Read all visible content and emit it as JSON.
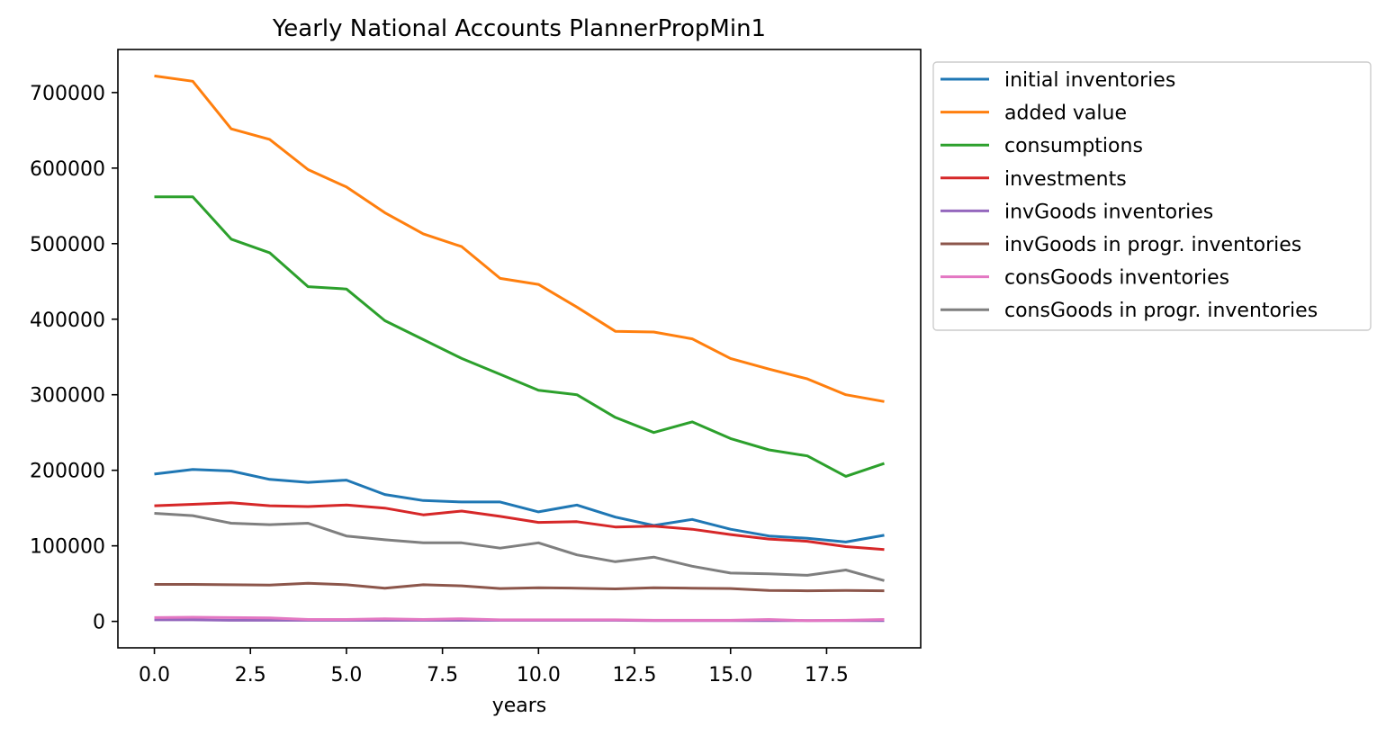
{
  "chart_data": {
    "type": "line",
    "title": "Yearly National Accounts PlannerPropMin1",
    "xlabel": "years",
    "ylabel": "",
    "xlim": [
      -0.95,
      19.95
    ],
    "ylim": [
      -35000,
      757000
    ],
    "x_ticks": [
      0.0,
      2.5,
      5.0,
      7.5,
      10.0,
      12.5,
      15.0,
      17.5
    ],
    "x_tick_labels": [
      "0.0",
      "2.5",
      "5.0",
      "7.5",
      "10.0",
      "12.5",
      "15.0",
      "17.5"
    ],
    "y_ticks": [
      0,
      100000,
      200000,
      300000,
      400000,
      500000,
      600000,
      700000
    ],
    "y_tick_labels": [
      "0",
      "100000",
      "200000",
      "300000",
      "400000",
      "500000",
      "600000",
      "700000"
    ],
    "grid": false,
    "legend_position": "outside-top-right",
    "x": [
      0,
      1,
      2,
      3,
      4,
      5,
      6,
      7,
      8,
      9,
      10,
      11,
      12,
      13,
      14,
      15,
      16,
      17,
      18,
      19
    ],
    "series": [
      {
        "name": "initial inventories",
        "color": "#1f77b4",
        "values": [
          195000,
          201000,
          199000,
          188000,
          184000,
          187000,
          168000,
          160000,
          158000,
          158000,
          145000,
          154000,
          138000,
          127000,
          135000,
          122000,
          113000,
          110000,
          105000,
          114000
        ]
      },
      {
        "name": "added value",
        "color": "#ff7f0e",
        "values": [
          722000,
          715000,
          652000,
          638000,
          598000,
          575000,
          541000,
          513000,
          496000,
          454000,
          446000,
          416000,
          384000,
          383000,
          374000,
          348000,
          334000,
          321000,
          300000,
          291000
        ]
      },
      {
        "name": "consumptions",
        "color": "#2ca02c",
        "values": [
          562000,
          562000,
          506000,
          488000,
          443000,
          440000,
          398000,
          373000,
          348000,
          327000,
          306000,
          300000,
          270000,
          250000,
          264000,
          242000,
          227000,
          219000,
          192000,
          209000
        ]
      },
      {
        "name": "investments",
        "color": "#d62728",
        "values": [
          153000,
          155000,
          157000,
          153000,
          152000,
          154000,
          150000,
          141000,
          146000,
          139000,
          131000,
          132000,
          125000,
          126000,
          122000,
          115000,
          109000,
          106000,
          99000,
          95000
        ]
      },
      {
        "name": "invGoods inventories",
        "color": "#9467bd",
        "values": [
          2000,
          2000,
          1500,
          1500,
          1500,
          1500,
          1500,
          1500,
          1500,
          1500,
          1500,
          1500,
          1500,
          1000,
          1000,
          1000,
          1000,
          1000,
          1000,
          1000
        ]
      },
      {
        "name": "invGoods in progr. inventories",
        "color": "#8c564b",
        "values": [
          49000,
          49000,
          48500,
          48000,
          50500,
          48500,
          44000,
          48500,
          47000,
          43500,
          44500,
          44000,
          43000,
          44500,
          44000,
          43500,
          41000,
          40500,
          41000,
          40500
        ]
      },
      {
        "name": "consGoods inventories",
        "color": "#e377c2",
        "values": [
          5000,
          5500,
          5000,
          4500,
          2500,
          2500,
          3500,
          2500,
          3500,
          2000,
          2000,
          2000,
          2000,
          1500,
          1500,
          1500,
          2500,
          1000,
          1500,
          2500
        ]
      },
      {
        "name": "consGoods in progr. inventories",
        "color": "#7f7f7f",
        "values": [
          143000,
          140000,
          130000,
          128000,
          130000,
          113000,
          108000,
          104000,
          104000,
          97000,
          104000,
          88000,
          79000,
          85000,
          73000,
          64000,
          63000,
          61000,
          68000,
          54000
        ]
      }
    ]
  }
}
